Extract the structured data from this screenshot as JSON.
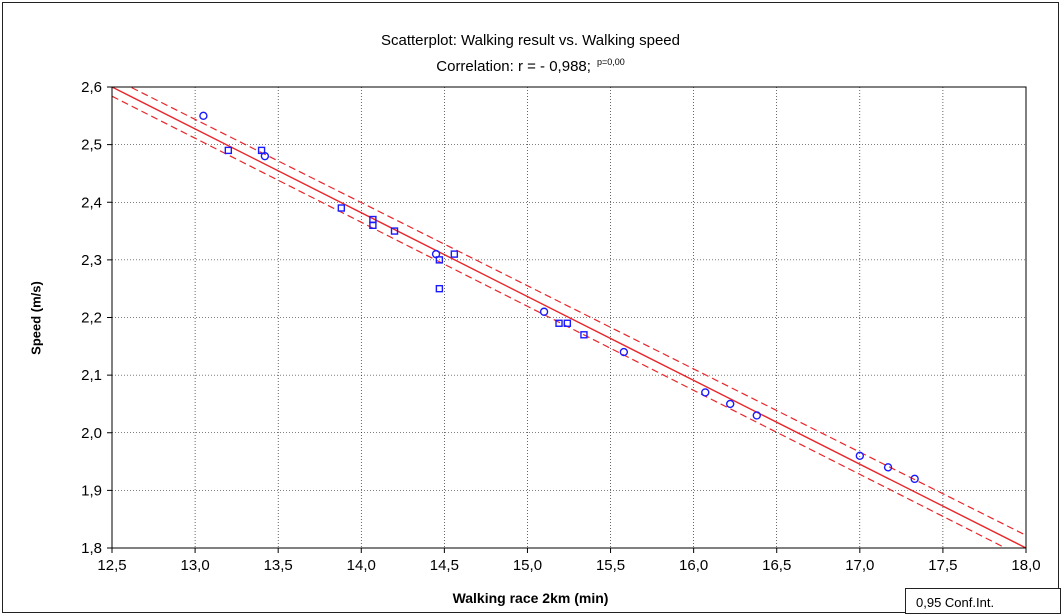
{
  "chart_data": {
    "type": "scatter",
    "title": "Scatterplot: Walking result vs. Walking speed",
    "subtitle": "Correlation: r = - 0,988;",
    "p_value_label": "p=0,00",
    "xlabel": "Walking race 2km (min)",
    "ylabel": "Speed (m/s)",
    "xlim": [
      12.5,
      18.0
    ],
    "ylim": [
      1.8,
      2.6
    ],
    "x_ticks": [
      "12,5",
      "13,0",
      "13,5",
      "14,0",
      "14,5",
      "15,0",
      "15,5",
      "16,0",
      "16,5",
      "17,0",
      "17,5",
      "18,0"
    ],
    "y_ticks": [
      "1,8",
      "1,9",
      "2,0",
      "2,1",
      "2,2",
      "2,3",
      "2,4",
      "2,5",
      "2,6"
    ],
    "grid": true,
    "points_circle": [
      [
        13.05,
        2.55
      ],
      [
        13.42,
        2.48
      ],
      [
        14.45,
        2.31
      ],
      [
        15.1,
        2.21
      ],
      [
        15.58,
        2.14
      ],
      [
        16.07,
        2.07
      ],
      [
        16.22,
        2.05
      ],
      [
        16.38,
        2.03
      ],
      [
        17.0,
        1.96
      ],
      [
        17.17,
        1.94
      ],
      [
        17.33,
        1.92
      ]
    ],
    "points_square": [
      [
        13.2,
        2.49
      ],
      [
        13.4,
        2.49
      ],
      [
        13.88,
        2.39
      ],
      [
        14.07,
        2.37
      ],
      [
        14.07,
        2.36
      ],
      [
        14.2,
        2.35
      ],
      [
        14.47,
        2.3
      ],
      [
        14.56,
        2.31
      ],
      [
        14.47,
        2.25
      ],
      [
        15.19,
        2.19
      ],
      [
        15.24,
        2.19
      ],
      [
        15.34,
        2.17
      ]
    ],
    "fit_line": {
      "x": [
        12.5,
        18.0
      ],
      "y": [
        2.6,
        1.8
      ]
    },
    "conf_upper": {
      "x": [
        12.5,
        18.0
      ],
      "y": [
        2.616,
        1.822
      ]
    },
    "conf_lower": {
      "x": [
        12.5,
        18.0
      ],
      "y": [
        2.584,
        1.782
      ]
    },
    "legend": "0,95 Conf.Int.",
    "colors": {
      "points": "#1a1aff",
      "fit": "#e8262a",
      "grid": "#000000"
    }
  }
}
